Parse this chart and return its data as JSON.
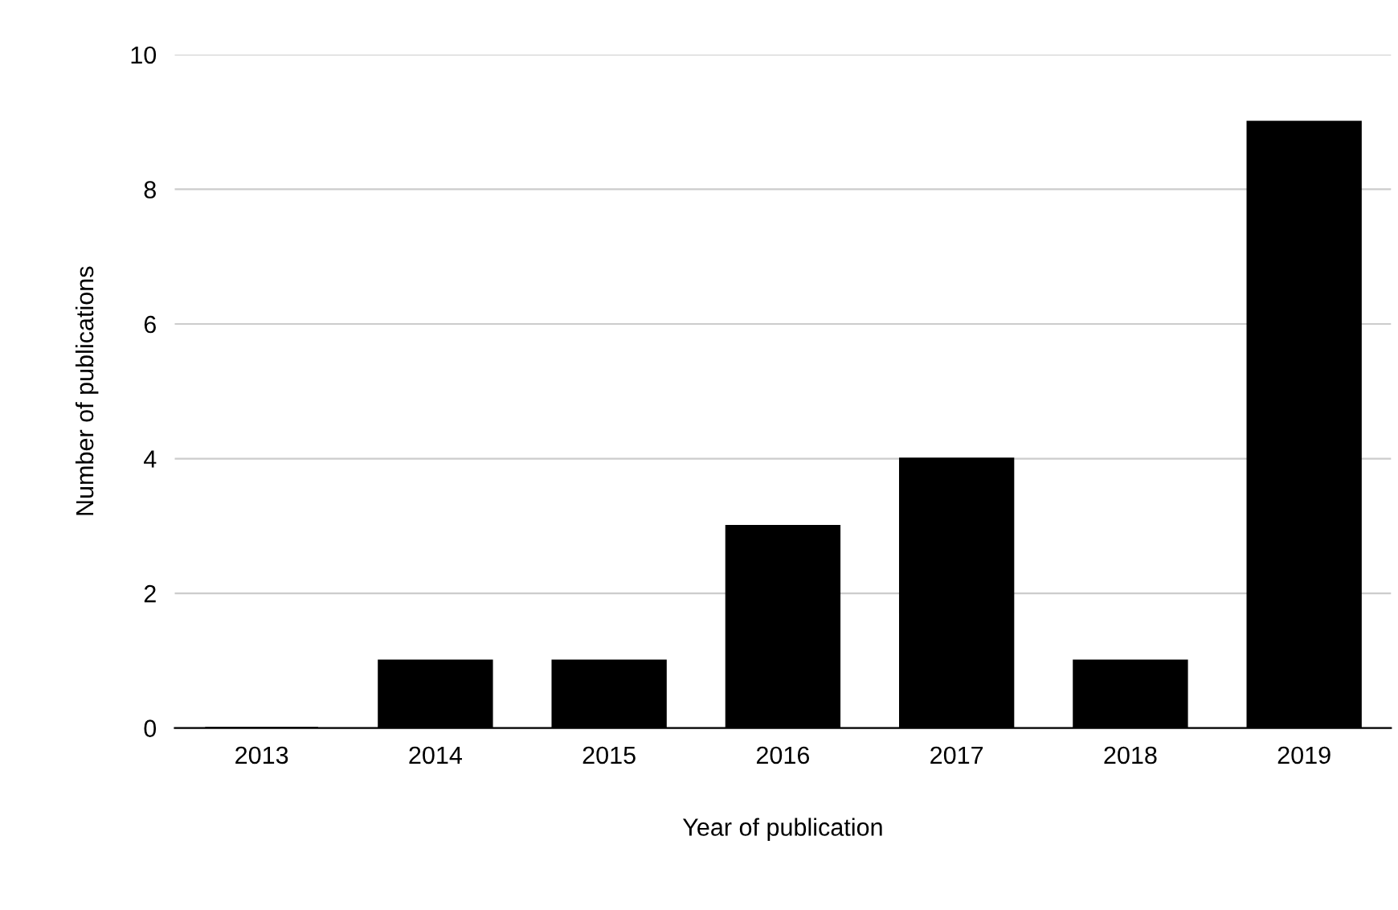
{
  "chart_data": {
    "type": "bar",
    "xlabel": "Year of publication",
    "ylabel": "Number of publications",
    "categories": [
      "2013",
      "2014",
      "2015",
      "2016",
      "2017",
      "2018",
      "2019"
    ],
    "values": [
      0,
      1,
      1,
      3,
      4,
      1,
      9
    ],
    "color": "#000000",
    "ylim": [
      0,
      10
    ],
    "yticks": [
      0,
      2,
      4,
      6,
      8,
      10
    ],
    "grid": "y",
    "legend": false
  }
}
